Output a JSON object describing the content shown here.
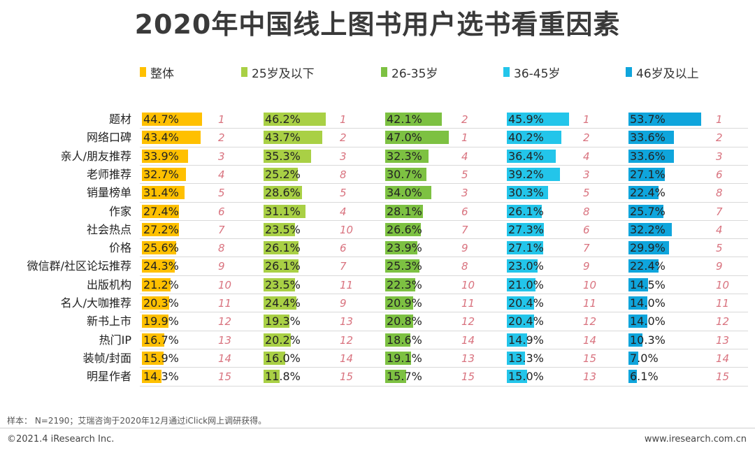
{
  "title": "2020年中国线上图书用户选书看重因素",
  "footer": {
    "note": "样本： N=2190；艾瑞咨询于2020年12月通过iClick网上调研获得。",
    "copyright": "©2021.4 iResearch Inc.",
    "website": "www.iresearch.com.cn"
  },
  "chart_data": {
    "type": "bar",
    "title": "2020年中国线上图书用户选书看重因素",
    "value_unit": "%",
    "xlim": [
      0,
      60
    ],
    "legend_position": "top",
    "grid": false,
    "categories": [
      "题材",
      "网络口碑",
      "亲人/朋友推荐",
      "老师推荐",
      "销量榜单",
      "作家",
      "社会热点",
      "价格",
      "微信群/社区论坛推荐",
      "出版机构",
      "名人/大咖推荐",
      "新书上市",
      "热门IP",
      "装帧/封面",
      "明星作者"
    ],
    "series": [
      {
        "name": "整体",
        "color": "#ffc000",
        "values": [
          44.7,
          43.4,
          33.9,
          32.7,
          31.4,
          27.4,
          27.2,
          25.6,
          24.3,
          21.2,
          20.3,
          19.9,
          16.7,
          15.9,
          14.3
        ],
        "labels": [
          "44.7%",
          "43.4%",
          "33.9%",
          "32.7%",
          "31.4%",
          "27.4%",
          "27.2%",
          "25.6%",
          "24.3%",
          "21.2%",
          "20.3%",
          "19.9%",
          "16.7%",
          "15.9%",
          "14.3%"
        ],
        "ranks": [
          "1",
          "2",
          "3",
          "4",
          "5",
          "6",
          "7",
          "8",
          "9",
          "10",
          "11",
          "12",
          "13",
          "14",
          "15"
        ]
      },
      {
        "name": "25岁及以下",
        "color": "#a9d045",
        "values": [
          46.2,
          43.7,
          35.3,
          25.2,
          28.6,
          31.1,
          23.5,
          26.1,
          26.1,
          23.5,
          24.4,
          19.3,
          20.2,
          16.0,
          11.8
        ],
        "labels": [
          "46.2%",
          "43.7%",
          "35.3%",
          "25.2%",
          "28.6%",
          "31.1%",
          "23.5%",
          "26.1%",
          "26.1%",
          "23.5%",
          "24.4%",
          "19.3%",
          "20.2%",
          "16.0%",
          "11.8%"
        ],
        "ranks": [
          "1",
          "2",
          "3",
          "8",
          "5",
          "4",
          "10",
          "6",
          "7",
          "11",
          "9",
          "13",
          "12",
          "14",
          "15"
        ]
      },
      {
        "name": "26-35岁",
        "color": "#7dc142",
        "values": [
          42.1,
          47.0,
          32.3,
          30.7,
          34.0,
          28.1,
          26.6,
          23.9,
          25.3,
          22.3,
          20.9,
          20.8,
          18.6,
          19.1,
          15.7
        ],
        "labels": [
          "42.1%",
          "47.0%",
          "32.3%",
          "30.7%",
          "34.0%",
          "28.1%",
          "26.6%",
          "23.9%",
          "25.3%",
          "22.3%",
          "20.9%",
          "20.8%",
          "18.6%",
          "19.1%",
          "15.7%"
        ],
        "ranks": [
          "2",
          "1",
          "4",
          "5",
          "3",
          "6",
          "7",
          "9",
          "8",
          "10",
          "11",
          "12",
          "14",
          "13",
          "15"
        ]
      },
      {
        "name": "36-45岁",
        "color": "#23c5ea",
        "values": [
          45.9,
          40.2,
          36.4,
          39.2,
          30.3,
          26.1,
          27.3,
          27.1,
          23.0,
          21.0,
          20.4,
          20.4,
          14.9,
          13.3,
          15.0
        ],
        "labels": [
          "45.9%",
          "40.2%",
          "36.4%",
          "39.2%",
          "30.3%",
          "26.1%",
          "27.3%",
          "27.1%",
          "23.0%",
          "21.0%",
          "20.4%",
          "20.4%",
          "14.9%",
          "13.3%",
          "15.0%"
        ],
        "ranks": [
          "1",
          "2",
          "4",
          "3",
          "5",
          "8",
          "6",
          "7",
          "9",
          "10",
          "11",
          "12",
          "14",
          "15",
          "13"
        ]
      },
      {
        "name": "46岁及以上",
        "color": "#0fa5dc",
        "values": [
          53.7,
          33.6,
          33.6,
          27.1,
          22.4,
          25.7,
          32.2,
          29.9,
          22.4,
          14.5,
          14.0,
          14.0,
          10.3,
          7.0,
          6.1
        ],
        "labels": [
          "53.7%",
          "33.6%",
          "33.6%",
          "27.1%",
          "22.4%",
          "25.7%",
          "32.2%",
          "29.9%",
          "22.4%",
          "14.5%",
          "14.0%",
          "14.0%",
          "10.3%",
          "7.0%",
          "6.1%"
        ],
        "ranks": [
          "1",
          "2",
          "3",
          "6",
          "8",
          "7",
          "4",
          "5",
          "9",
          "10",
          "11",
          "12",
          "13",
          "14",
          "15"
        ]
      }
    ]
  }
}
